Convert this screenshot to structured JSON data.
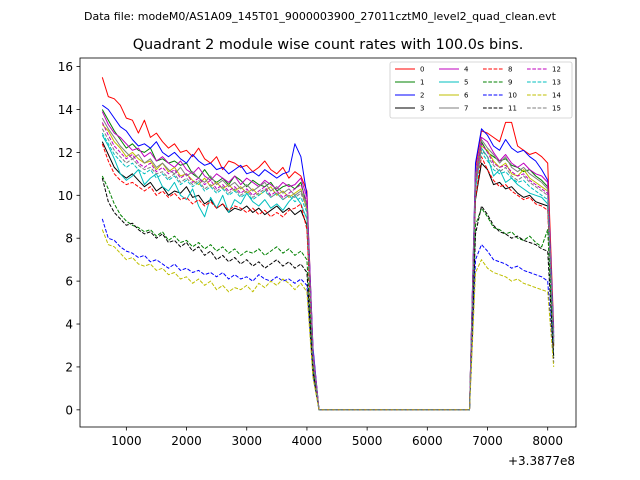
{
  "chart_data": {
    "type": "line",
    "suptitle": "Data file: modeM0/AS1A09_145T01_9000003900_27011cztM0_level2_quad_clean.evt",
    "title": "Quadrant 2 module wise count rates with 100.0s bins.",
    "xlabel": "",
    "ylabel": "",
    "x_offset_label": "+3.3877e8",
    "xlim": [
      230,
      8470
    ],
    "ylim": [
      -0.8,
      16.4
    ],
    "xticks": [
      1000,
      2000,
      3000,
      4000,
      5000,
      6000,
      7000,
      8000
    ],
    "yticks": [
      0,
      2,
      4,
      6,
      8,
      10,
      12,
      14,
      16
    ],
    "legend_position": "top-right",
    "x": [
      600,
      700,
      800,
      900,
      1000,
      1100,
      1200,
      1300,
      1400,
      1500,
      1600,
      1700,
      1800,
      1900,
      2000,
      2100,
      2200,
      2300,
      2400,
      2500,
      2600,
      2700,
      2800,
      2900,
      3000,
      3100,
      3200,
      3300,
      3400,
      3500,
      3600,
      3700,
      3800,
      3900,
      4000,
      4100,
      4200,
      4300,
      6700,
      6800,
      6900,
      7000,
      7100,
      7200,
      7300,
      7400,
      7500,
      7600,
      7700,
      7800,
      7900,
      8000,
      8100
    ],
    "series": [
      {
        "name": "0",
        "color": "#ff0000",
        "dash": "solid",
        "values": [
          15.5,
          14.6,
          14.5,
          14.2,
          13.6,
          13.5,
          12.9,
          13.5,
          12.7,
          12.9,
          12.5,
          12.2,
          12.4,
          12.0,
          12.1,
          11.8,
          12.2,
          11.7,
          11.5,
          11.8,
          11.2,
          11.6,
          11.5,
          11.3,
          11.4,
          11.1,
          11.3,
          11.6,
          11.2,
          11.0,
          11.3,
          10.8,
          11.1,
          10.9,
          10.2,
          2.8,
          0.0,
          0.0,
          0.0,
          11.3,
          13.0,
          12.9,
          12.7,
          12.5,
          13.4,
          13.4,
          12.3,
          12.1,
          11.9,
          12.0,
          11.8,
          11.5,
          3.8
        ]
      },
      {
        "name": "1",
        "color": "#008000",
        "dash": "solid",
        "values": [
          14.0,
          13.5,
          13.0,
          12.6,
          12.2,
          12.4,
          12.1,
          12.0,
          12.2,
          11.6,
          11.7,
          11.5,
          11.6,
          11.4,
          11.5,
          11.0,
          10.8,
          11.2,
          10.8,
          10.6,
          10.8,
          10.5,
          10.9,
          10.7,
          10.4,
          10.7,
          10.5,
          10.4,
          10.6,
          10.2,
          10.4,
          10.5,
          10.3,
          10.6,
          9.5,
          2.6,
          0.0,
          0.0,
          0.0,
          10.8,
          12.5,
          12.0,
          11.8,
          11.6,
          11.7,
          11.4,
          11.3,
          11.1,
          11.2,
          10.9,
          10.7,
          10.4,
          3.4
        ]
      },
      {
        "name": "2",
        "color": "#0000ff",
        "dash": "solid",
        "values": [
          14.2,
          14.0,
          13.6,
          13.2,
          13.0,
          12.6,
          12.3,
          12.4,
          12.2,
          12.5,
          12.0,
          11.8,
          12.0,
          11.7,
          11.5,
          11.9,
          11.6,
          11.4,
          11.5,
          11.2,
          11.3,
          11.0,
          11.2,
          11.4,
          11.0,
          11.1,
          10.9,
          11.2,
          11.0,
          10.8,
          11.0,
          11.1,
          12.4,
          11.8,
          10.0,
          2.9,
          0.0,
          0.0,
          0.0,
          11.5,
          13.1,
          12.8,
          12.3,
          12.1,
          12.6,
          12.2,
          12.0,
          12.1,
          11.8,
          11.6,
          11.2,
          10.7,
          3.6
        ]
      },
      {
        "name": "3",
        "color": "#000000",
        "dash": "solid",
        "values": [
          12.5,
          11.9,
          11.3,
          11.0,
          10.8,
          11.0,
          10.7,
          10.4,
          10.6,
          10.2,
          10.4,
          10.0,
          10.2,
          10.1,
          10.4,
          9.9,
          10.0,
          9.6,
          9.8,
          9.4,
          9.6,
          9.2,
          9.4,
          9.3,
          9.5,
          9.2,
          9.4,
          9.1,
          9.3,
          9.5,
          9.2,
          9.4,
          9.1,
          9.3,
          8.6,
          2.4,
          0.0,
          0.0,
          0.0,
          9.8,
          11.5,
          11.2,
          10.5,
          10.6,
          10.3,
          10.4,
          10.1,
          9.9,
          10.0,
          9.7,
          9.6,
          9.5,
          3.0
        ]
      },
      {
        "name": "4",
        "color": "#bf00bf",
        "dash": "solid",
        "values": [
          13.9,
          13.3,
          12.9,
          12.7,
          12.4,
          12.1,
          12.2,
          11.8,
          12.0,
          11.6,
          11.8,
          11.5,
          11.3,
          11.6,
          11.2,
          11.0,
          11.3,
          10.9,
          10.7,
          11.0,
          10.8,
          10.6,
          10.9,
          10.5,
          10.8,
          10.6,
          10.4,
          10.7,
          10.5,
          10.3,
          10.6,
          10.4,
          10.5,
          10.8,
          9.9,
          2.7,
          0.0,
          0.0,
          0.0,
          11.0,
          12.7,
          12.5,
          12.0,
          11.6,
          11.9,
          11.5,
          11.3,
          11.5,
          11.2,
          11.0,
          10.9,
          10.6,
          3.4
        ]
      },
      {
        "name": "5",
        "color": "#00bfbf",
        "dash": "solid",
        "values": [
          12.8,
          12.3,
          11.7,
          11.0,
          10.7,
          10.9,
          11.2,
          10.5,
          10.8,
          11.0,
          10.4,
          10.2,
          10.6,
          10.0,
          9.8,
          10.3,
          9.5,
          9.0,
          9.9,
          9.4,
          10.0,
          9.2,
          9.8,
          9.6,
          10.1,
          9.7,
          9.5,
          9.8,
          9.4,
          9.6,
          9.3,
          9.7,
          10.0,
          9.6,
          8.9,
          2.3,
          0.0,
          0.0,
          0.0,
          10.3,
          12.2,
          11.8,
          10.9,
          11.2,
          10.6,
          10.8,
          10.5,
          10.3,
          10.1,
          10.0,
          9.9,
          9.6,
          3.1
        ]
      },
      {
        "name": "6",
        "color": "#bfbf00",
        "dash": "solid",
        "values": [
          13.3,
          13.0,
          12.5,
          12.2,
          11.8,
          12.0,
          11.7,
          11.5,
          11.6,
          11.2,
          11.5,
          11.1,
          11.3,
          10.9,
          11.0,
          10.7,
          10.5,
          10.8,
          10.4,
          10.6,
          10.3,
          10.5,
          10.2,
          10.4,
          10.1,
          10.3,
          10.0,
          10.2,
          10.4,
          10.0,
          10.2,
          9.9,
          10.1,
          10.3,
          9.3,
          2.5,
          0.0,
          0.0,
          0.0,
          10.6,
          12.3,
          12.1,
          11.6,
          11.3,
          11.5,
          11.0,
          10.9,
          11.2,
          10.8,
          10.6,
          10.4,
          10.2,
          3.2
        ]
      },
      {
        "name": "7",
        "color": "#7f7f7f",
        "dash": "solid",
        "values": [
          13.6,
          13.1,
          12.7,
          12.3,
          12.0,
          11.7,
          11.9,
          11.5,
          11.7,
          11.3,
          11.5,
          11.2,
          11.0,
          11.3,
          10.9,
          11.1,
          10.8,
          10.6,
          10.9,
          10.5,
          10.7,
          10.4,
          10.6,
          10.3,
          10.5,
          10.2,
          10.4,
          10.6,
          10.2,
          10.4,
          10.1,
          10.3,
          10.0,
          10.2,
          9.6,
          2.6,
          0.0,
          0.0,
          0.0,
          10.9,
          12.6,
          12.2,
          11.9,
          11.5,
          11.8,
          11.3,
          11.1,
          11.3,
          11.0,
          10.8,
          10.6,
          10.3,
          3.3
        ]
      },
      {
        "name": "8",
        "color": "#ff0000",
        "dash": "dashed",
        "values": [
          12.4,
          11.6,
          11.0,
          10.7,
          10.5,
          10.6,
          10.4,
          10.2,
          10.4,
          10.0,
          10.2,
          9.9,
          10.1,
          9.8,
          9.9,
          9.6,
          9.8,
          9.5,
          9.7,
          9.4,
          9.6,
          9.3,
          9.5,
          9.4,
          9.2,
          9.4,
          9.1,
          9.3,
          9.0,
          9.2,
          9.0,
          9.3,
          9.4,
          9.6,
          8.4,
          2.2,
          0.0,
          0.0,
          0.0,
          9.9,
          11.8,
          11.2,
          10.7,
          10.4,
          10.5,
          10.2,
          10.0,
          9.8,
          9.9,
          9.6,
          9.5,
          9.3,
          2.9
        ]
      },
      {
        "name": "9",
        "color": "#008000",
        "dash": "dashed",
        "values": [
          10.9,
          10.3,
          9.6,
          9.1,
          8.8,
          8.6,
          8.5,
          8.3,
          8.4,
          8.1,
          8.3,
          7.9,
          8.1,
          7.8,
          7.9,
          7.6,
          7.8,
          7.5,
          7.7,
          7.4,
          7.6,
          7.3,
          7.5,
          7.2,
          7.4,
          7.3,
          7.5,
          7.2,
          7.4,
          7.6,
          7.3,
          7.5,
          7.2,
          7.4,
          7.0,
          1.9,
          0.0,
          0.0,
          0.0,
          8.6,
          9.4,
          9.0,
          8.5,
          8.4,
          8.2,
          8.3,
          8.0,
          7.9,
          8.1,
          7.8,
          7.6,
          8.4,
          2.5
        ]
      },
      {
        "name": "10",
        "color": "#0000ff",
        "dash": "dashed",
        "values": [
          8.9,
          8.0,
          7.9,
          7.6,
          7.4,
          7.3,
          7.1,
          7.2,
          6.9,
          7.0,
          6.8,
          6.6,
          6.8,
          6.5,
          6.6,
          6.4,
          6.5,
          6.3,
          6.4,
          6.2,
          6.4,
          6.1,
          6.3,
          6.1,
          6.2,
          6.0,
          6.3,
          6.1,
          6.0,
          6.2,
          6.0,
          6.1,
          5.9,
          6.1,
          5.8,
          1.6,
          0.0,
          0.0,
          0.0,
          7.0,
          7.7,
          7.4,
          7.0,
          6.9,
          6.8,
          6.6,
          6.7,
          6.5,
          6.4,
          6.3,
          6.2,
          6.0,
          2.2
        ]
      },
      {
        "name": "11",
        "color": "#000000",
        "dash": "dashed",
        "values": [
          10.8,
          9.7,
          9.2,
          8.9,
          8.6,
          8.7,
          8.4,
          8.2,
          8.3,
          8.0,
          8.2,
          7.8,
          7.9,
          7.6,
          7.8,
          7.4,
          7.6,
          7.2,
          7.4,
          7.0,
          7.2,
          6.9,
          7.1,
          6.8,
          7.0,
          6.7,
          6.9,
          6.6,
          6.8,
          7.0,
          6.7,
          6.9,
          6.6,
          6.8,
          6.4,
          1.8,
          0.0,
          0.0,
          0.0,
          8.2,
          9.5,
          9.1,
          8.6,
          8.3,
          8.2,
          8.0,
          8.1,
          7.9,
          7.8,
          7.7,
          7.5,
          7.4,
          2.4
        ]
      },
      {
        "name": "12",
        "color": "#bf00bf",
        "dash": "dashed",
        "values": [
          13.4,
          12.8,
          12.3,
          12.0,
          11.7,
          11.9,
          11.5,
          11.3,
          11.5,
          11.1,
          11.3,
          11.0,
          11.2,
          10.8,
          11.0,
          10.6,
          10.8,
          10.5,
          10.7,
          10.3,
          10.5,
          10.2,
          10.4,
          10.1,
          10.3,
          10.0,
          10.2,
          10.4,
          10.0,
          10.2,
          9.9,
          10.1,
          10.3,
          10.5,
          9.7,
          2.5,
          0.0,
          0.0,
          0.0,
          10.7,
          12.4,
          12.0,
          11.5,
          11.3,
          11.4,
          11.1,
          10.9,
          11.0,
          10.7,
          10.5,
          10.3,
          10.1,
          3.2
        ]
      },
      {
        "name": "13",
        "color": "#00bfbf",
        "dash": "dashed",
        "values": [
          12.9,
          12.4,
          11.9,
          11.6,
          11.3,
          11.5,
          11.2,
          11.0,
          11.2,
          10.8,
          11.0,
          10.7,
          10.9,
          10.5,
          10.7,
          10.4,
          10.6,
          10.2,
          10.4,
          10.1,
          10.3,
          10.0,
          10.2,
          9.9,
          10.1,
          9.8,
          10.0,
          10.2,
          9.9,
          10.1,
          9.8,
          10.0,
          9.7,
          9.9,
          9.2,
          2.4,
          0.0,
          0.0,
          0.0,
          10.4,
          12.0,
          11.6,
          11.2,
          11.0,
          11.1,
          10.8,
          10.6,
          10.7,
          10.4,
          10.2,
          10.0,
          9.8,
          3.1
        ]
      },
      {
        "name": "14",
        "color": "#bfbf00",
        "dash": "dashed",
        "values": [
          8.4,
          7.7,
          7.6,
          7.3,
          7.0,
          7.1,
          6.8,
          6.7,
          6.8,
          6.5,
          6.6,
          6.3,
          6.4,
          6.1,
          6.2,
          5.9,
          6.1,
          5.8,
          6.0,
          5.6,
          5.8,
          5.5,
          5.7,
          5.6,
          5.8,
          5.5,
          5.9,
          5.7,
          6.0,
          5.8,
          6.1,
          5.9,
          5.6,
          5.9,
          5.5,
          1.5,
          0.0,
          0.0,
          0.0,
          6.4,
          7.0,
          6.6,
          6.4,
          6.3,
          6.2,
          6.0,
          6.1,
          5.9,
          5.8,
          5.7,
          5.6,
          5.5,
          2.0
        ]
      },
      {
        "name": "15",
        "color": "#7f7f7f",
        "dash": "dashed",
        "values": [
          13.1,
          12.6,
          12.1,
          11.8,
          11.5,
          11.7,
          11.4,
          11.2,
          11.3,
          11.0,
          11.1,
          10.8,
          11.0,
          10.6,
          10.8,
          10.5,
          10.7,
          10.3,
          10.5,
          10.2,
          10.4,
          10.1,
          10.3,
          10.0,
          10.2,
          9.9,
          10.1,
          10.3,
          9.9,
          10.1,
          9.8,
          10.0,
          9.9,
          10.1,
          9.4,
          2.4,
          0.0,
          0.0,
          0.0,
          10.5,
          12.1,
          11.8,
          11.4,
          11.1,
          11.3,
          10.9,
          10.7,
          10.9,
          10.6,
          10.4,
          10.2,
          10.0,
          3.1
        ]
      }
    ]
  }
}
